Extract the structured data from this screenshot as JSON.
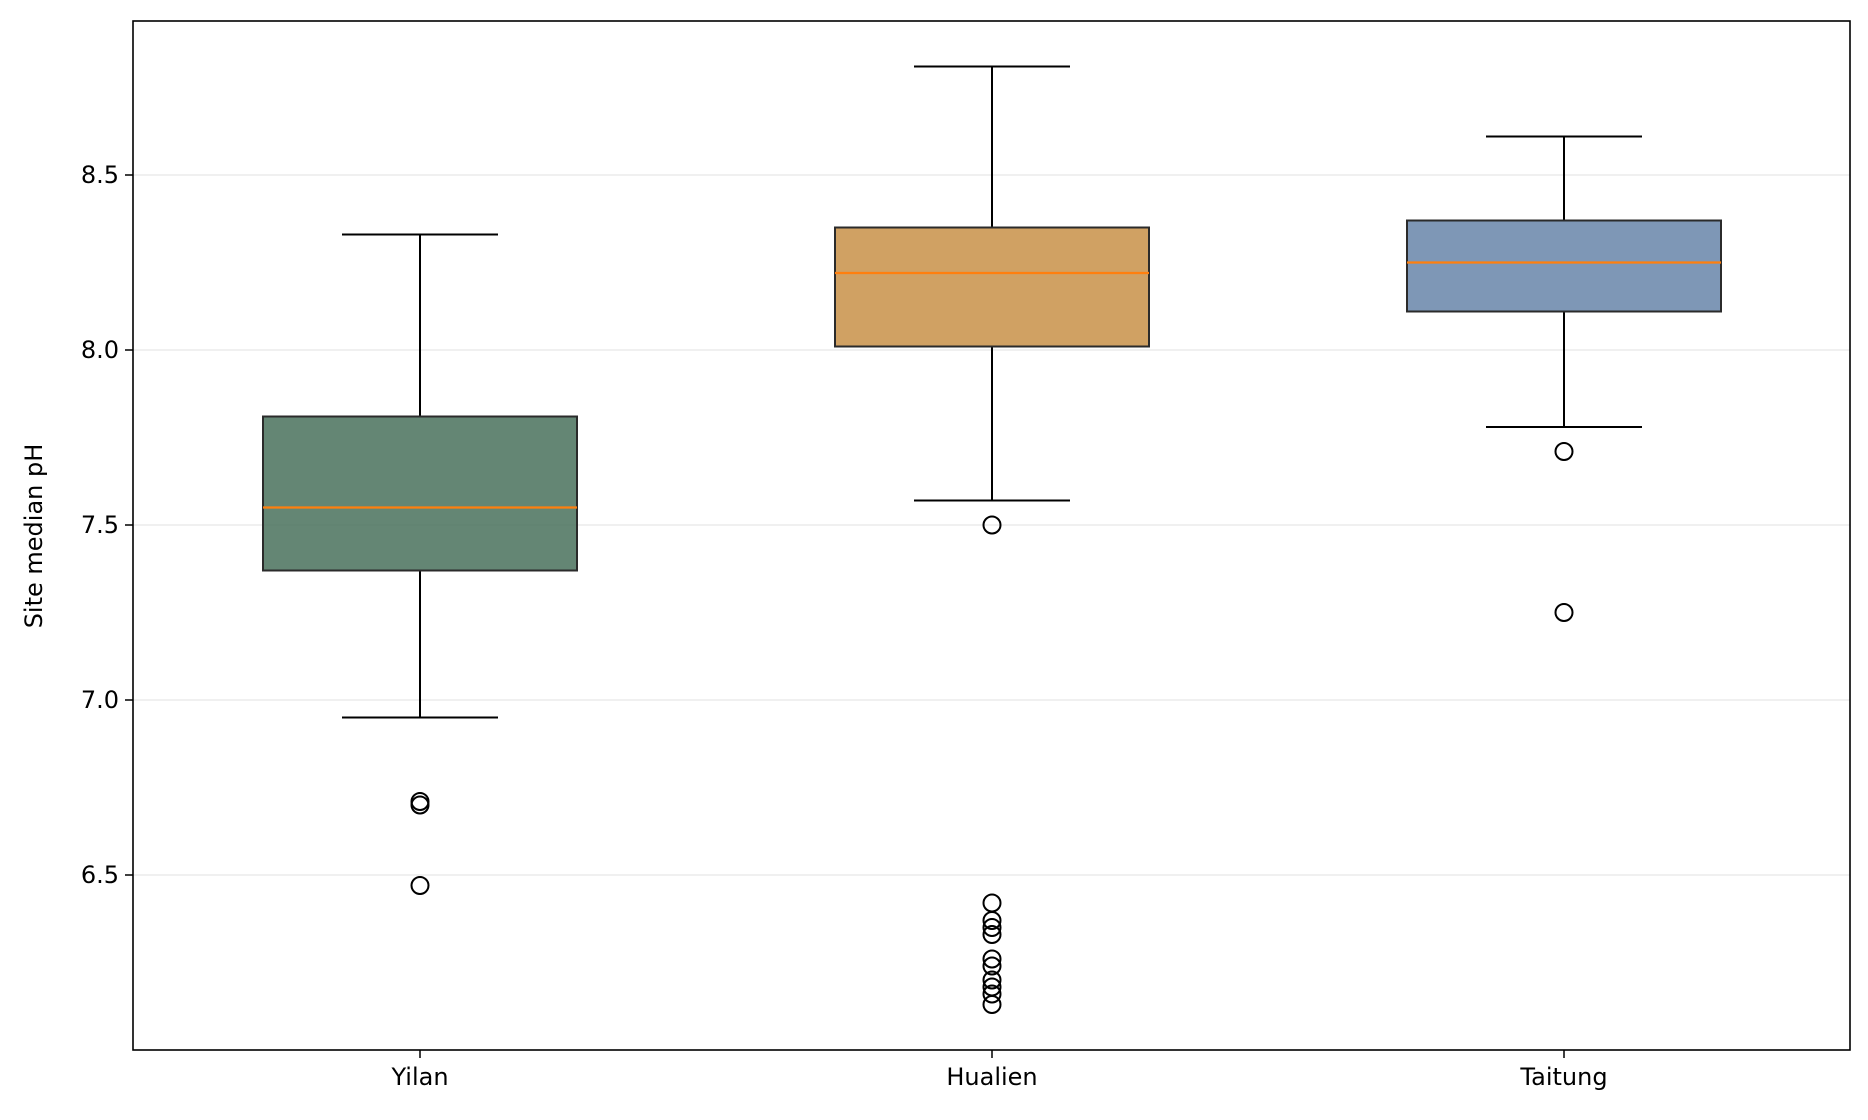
{
  "chart_data": {
    "type": "box",
    "title": "",
    "xlabel": "",
    "ylabel": "Site median pH",
    "ylim": [
      6.0,
      8.94
    ],
    "yticks": [
      6.5,
      7.0,
      7.5,
      8.0,
      8.5
    ],
    "ytick_labels": [
      "6.5",
      "7.0",
      "7.5",
      "8.0",
      "8.5"
    ],
    "grid": "horizontal",
    "categories": [
      "Yilan",
      "Hualien",
      "Taitung"
    ],
    "boxes": [
      {
        "name": "Yilan",
        "color": "#4f7561",
        "whisker_low": 6.95,
        "q1": 7.37,
        "median": 7.55,
        "q3": 7.81,
        "whisker_high": 8.33,
        "outliers": [
          6.71,
          6.7,
          6.47
        ]
      },
      {
        "name": "Hualien",
        "color": "#c9944d",
        "whisker_low": 7.57,
        "q1": 8.01,
        "median": 8.22,
        "q3": 8.35,
        "whisker_high": 8.81,
        "outliers": [
          7.5,
          6.42,
          6.37,
          6.35,
          6.33,
          6.26,
          6.24,
          6.2,
          6.18,
          6.16,
          6.13
        ]
      },
      {
        "name": "Taitung",
        "color": "#6c89ac",
        "whisker_low": 7.78,
        "q1": 8.11,
        "median": 8.25,
        "q3": 8.37,
        "whisker_high": 8.61,
        "outliers": [
          7.71,
          7.25
        ]
      }
    ],
    "median_color": "#ff7f0e"
  }
}
